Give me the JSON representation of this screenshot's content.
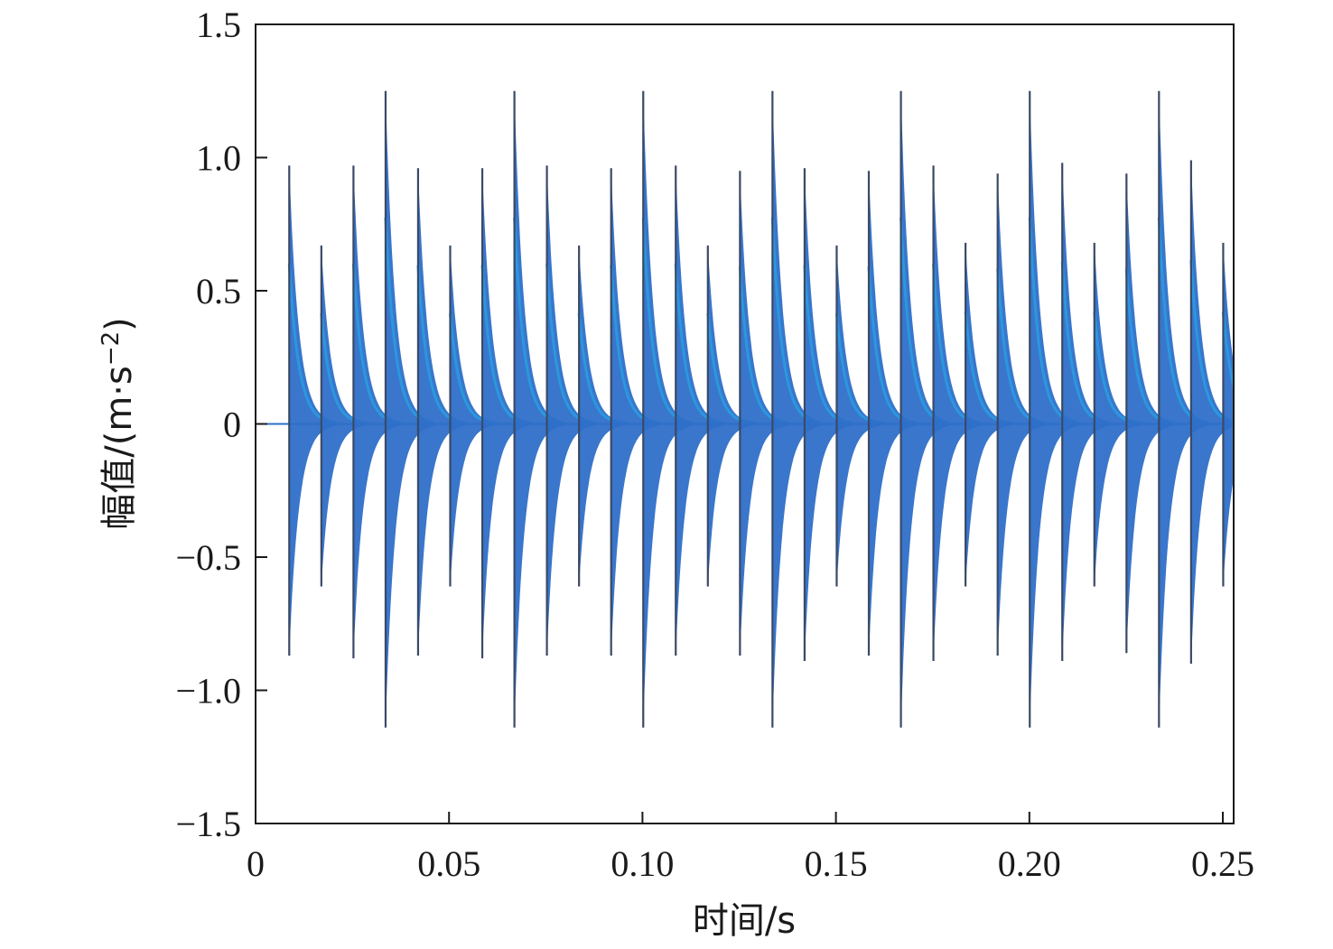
{
  "chart_data": {
    "type": "line",
    "xlabel": "时间/s",
    "ylabel": "幅值/(m·s",
    "ylabel_sup": "−2",
    "ylabel_close": ")",
    "xlim": [
      0,
      0.25
    ],
    "ylim": [
      -1.5,
      1.5
    ],
    "x_ticks": [
      {
        "value": 0,
        "label": "0"
      },
      {
        "value": 0.05,
        "label": "0.05"
      },
      {
        "value": 0.1,
        "label": "0.10"
      },
      {
        "value": 0.15,
        "label": "0.15"
      },
      {
        "value": 0.2,
        "label": "0.20"
      },
      {
        "value": 0.25,
        "label": "0.25"
      }
    ],
    "y_ticks": [
      {
        "value": 1.5,
        "label": "1.5"
      },
      {
        "value": 1.0,
        "label": "1.0"
      },
      {
        "value": 0.5,
        "label": "0.5"
      },
      {
        "value": 0,
        "label": "0"
      },
      {
        "value": -0.5,
        "label": "−0.5"
      },
      {
        "value": -1.0,
        "label": "−1.0"
      },
      {
        "value": -1.5,
        "label": "−1.5"
      }
    ],
    "grid": false,
    "series": [
      {
        "color": "#2e6fc9",
        "decay_time": 0.0025,
        "impulses": [
          {
            "t": 0.0087,
            "pos": 0.97,
            "neg": -0.87
          },
          {
            "t": 0.017,
            "pos": 0.67,
            "neg": -0.61
          },
          {
            "t": 0.0253,
            "pos": 0.97,
            "neg": -0.88
          },
          {
            "t": 0.0336,
            "pos": 1.25,
            "neg": -1.14
          },
          {
            "t": 0.042,
            "pos": 0.96,
            "neg": -0.87
          },
          {
            "t": 0.0503,
            "pos": 0.67,
            "neg": -0.61
          },
          {
            "t": 0.0586,
            "pos": 0.96,
            "neg": -0.88
          },
          {
            "t": 0.0669,
            "pos": 1.25,
            "neg": -1.14
          },
          {
            "t": 0.0753,
            "pos": 0.97,
            "neg": -0.87
          },
          {
            "t": 0.0836,
            "pos": 0.67,
            "neg": -0.61
          },
          {
            "t": 0.0919,
            "pos": 0.96,
            "neg": -0.87
          },
          {
            "t": 0.1002,
            "pos": 1.25,
            "neg": -1.14
          },
          {
            "t": 0.1086,
            "pos": 0.97,
            "neg": -0.87
          },
          {
            "t": 0.1169,
            "pos": 0.67,
            "neg": -0.61
          },
          {
            "t": 0.1252,
            "pos": 0.95,
            "neg": -0.87
          },
          {
            "t": 0.1336,
            "pos": 1.25,
            "neg": -1.14
          },
          {
            "t": 0.1419,
            "pos": 0.96,
            "neg": -0.89
          },
          {
            "t": 0.1502,
            "pos": 0.67,
            "neg": -0.61
          },
          {
            "t": 0.1585,
            "pos": 0.95,
            "neg": -0.87
          },
          {
            "t": 0.1668,
            "pos": 1.25,
            "neg": -1.14
          },
          {
            "t": 0.1752,
            "pos": 0.97,
            "neg": -0.89
          },
          {
            "t": 0.1835,
            "pos": 0.68,
            "neg": -0.61
          },
          {
            "t": 0.1918,
            "pos": 0.94,
            "neg": -0.87
          },
          {
            "t": 0.2001,
            "pos": 1.25,
            "neg": -1.14
          },
          {
            "t": 0.2085,
            "pos": 0.98,
            "neg": -0.89
          },
          {
            "t": 0.2168,
            "pos": 0.68,
            "neg": -0.61
          },
          {
            "t": 0.2251,
            "pos": 0.94,
            "neg": -0.86
          },
          {
            "t": 0.2335,
            "pos": 1.25,
            "neg": -1.14
          },
          {
            "t": 0.2418,
            "pos": 0.99,
            "neg": -0.9
          },
          {
            "t": 0.2501,
            "pos": 0.68,
            "neg": -0.61
          }
        ]
      }
    ]
  }
}
